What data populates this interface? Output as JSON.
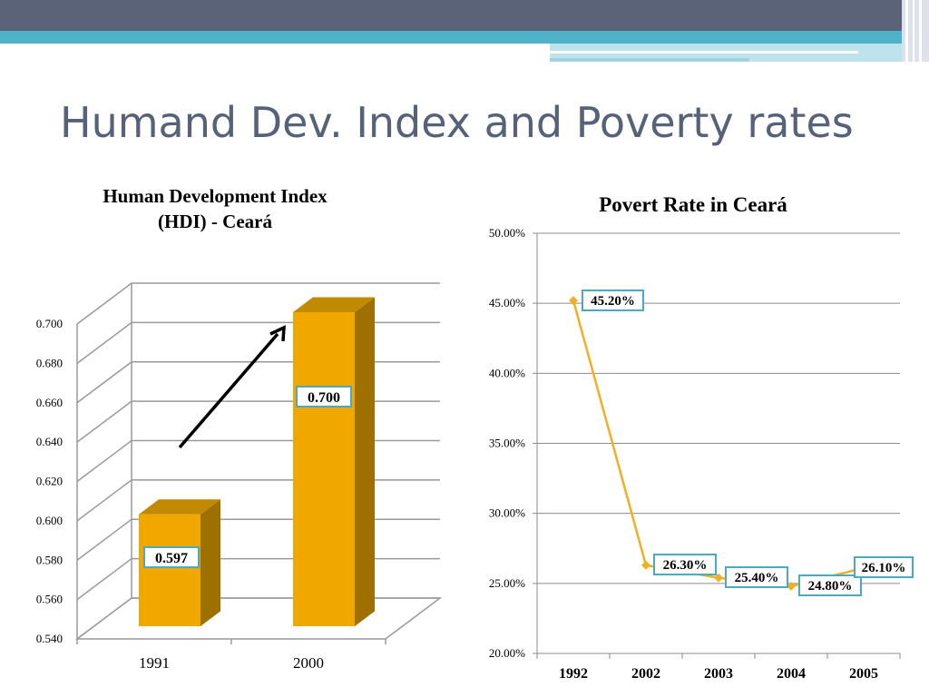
{
  "slide": {
    "title": "Humand Dev. Index and Poverty rates",
    "colors": {
      "banner_dark": "#5b6378",
      "banner_light": "#4eb3c9",
      "title": "#56627a",
      "bar_fill": "#f0a800",
      "bar_side": "#9e7000",
      "line": "#f0b020",
      "label_border": "#4aaac0"
    }
  },
  "chart_data": [
    {
      "type": "bar",
      "title_lines": [
        "Human Development Index",
        "(HDI) - Ceará"
      ],
      "categories": [
        "1991",
        "2000"
      ],
      "values": [
        0.597,
        0.7
      ],
      "data_labels": [
        "0.597",
        "0.700"
      ],
      "ylim": [
        0.54,
        0.7
      ],
      "yticks": [
        "0.540",
        "0.560",
        "0.580",
        "0.600",
        "0.620",
        "0.640",
        "0.660",
        "0.680",
        "0.700"
      ],
      "style": "3d-column",
      "grid": true,
      "annotation": "upward arrow"
    },
    {
      "type": "line",
      "title": "Povert Rate in Ceará",
      "categories": [
        "1992",
        "2002",
        "2003",
        "2004",
        "2005"
      ],
      "values": [
        45.2,
        26.3,
        25.4,
        24.8,
        26.1
      ],
      "data_labels": [
        "45.20%",
        "26.30%",
        "25.40%",
        "24.80%",
        "26.10%"
      ],
      "ylim": [
        20,
        50
      ],
      "yticks": [
        "20.00%",
        "25.00%",
        "30.00%",
        "35.00%",
        "40.00%",
        "45.00%",
        "50.00%"
      ],
      "grid": true
    }
  ]
}
